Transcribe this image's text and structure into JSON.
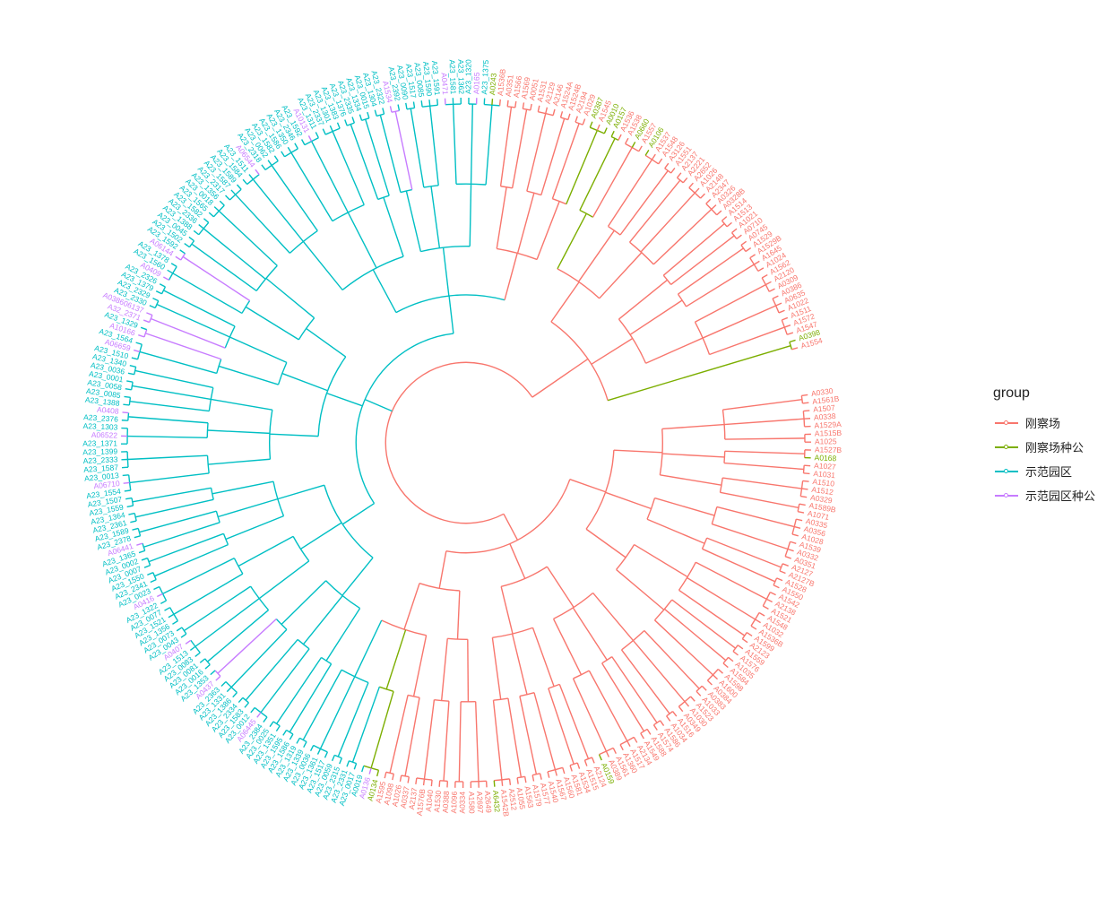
{
  "legend": {
    "title": "group",
    "items": [
      {
        "label": "刚察场",
        "color": "#F8766D"
      },
      {
        "label": "刚察场种公",
        "color": "#7CAE00"
      },
      {
        "label": "示范园区",
        "color": "#00BFC4"
      },
      {
        "label": "示范园区种公",
        "color": "#C77CFF"
      }
    ]
  },
  "tips": [
    {
      "label": "A0330",
      "group": 0
    },
    {
      "label": "A1561B",
      "group": 0
    },
    {
      "label": "A1507",
      "group": 0
    },
    {
      "label": "A0338",
      "group": 0
    },
    {
      "label": "A1529A",
      "group": 0
    },
    {
      "label": "A1515B",
      "group": 0
    },
    {
      "label": "A1025",
      "group": 0
    },
    {
      "label": "A1527B",
      "group": 0
    },
    {
      "label": "A0168",
      "group": 1
    },
    {
      "label": "A1027",
      "group": 0
    },
    {
      "label": "A1031",
      "group": 0
    },
    {
      "label": "A1510",
      "group": 0
    },
    {
      "label": "A1512",
      "group": 0
    },
    {
      "label": "A0329",
      "group": 0
    },
    {
      "label": "A1589B",
      "group": 0
    },
    {
      "label": "A1071",
      "group": 0
    },
    {
      "label": "A0335",
      "group": 0
    },
    {
      "label": "A0356",
      "group": 0
    },
    {
      "label": "A1028",
      "group": 0
    },
    {
      "label": "A1539",
      "group": 0
    },
    {
      "label": "A0332",
      "group": 0
    },
    {
      "label": "A0351",
      "group": 0
    },
    {
      "label": "A2127",
      "group": 0
    },
    {
      "label": "A2127B",
      "group": 0
    },
    {
      "label": "A1528",
      "group": 0
    },
    {
      "label": "A1550",
      "group": 0
    },
    {
      "label": "A1542",
      "group": 0
    },
    {
      "label": "A2138",
      "group": 0
    },
    {
      "label": "A1521",
      "group": 0
    },
    {
      "label": "A1548",
      "group": 0
    },
    {
      "label": "A1032",
      "group": 0
    },
    {
      "label": "A1536B",
      "group": 0
    },
    {
      "label": "A1599",
      "group": 0
    },
    {
      "label": "A2123",
      "group": 0
    },
    {
      "label": "A1559",
      "group": 0
    },
    {
      "label": "A1576",
      "group": 0
    },
    {
      "label": "A1035",
      "group": 0
    },
    {
      "label": "A1584",
      "group": 0
    },
    {
      "label": "A1598",
      "group": 0
    },
    {
      "label": "A1600",
      "group": 0
    },
    {
      "label": "A0384",
      "group": 0
    },
    {
      "label": "A0383",
      "group": 0
    },
    {
      "label": "A1033",
      "group": 0
    },
    {
      "label": "A1523",
      "group": 0
    },
    {
      "label": "A1030",
      "group": 0
    },
    {
      "label": "A0349",
      "group": 0
    },
    {
      "label": "A1516",
      "group": 0
    },
    {
      "label": "A1034",
      "group": 0
    },
    {
      "label": "A1586",
      "group": 0
    },
    {
      "label": "A1574",
      "group": 0
    },
    {
      "label": "A1588",
      "group": 0
    },
    {
      "label": "A1549",
      "group": 0
    },
    {
      "label": "A2134",
      "group": 0
    },
    {
      "label": "A1517",
      "group": 0
    },
    {
      "label": "A1360",
      "group": 0
    },
    {
      "label": "A1561",
      "group": 0
    },
    {
      "label": "A0389",
      "group": 0
    },
    {
      "label": "A0159",
      "group": 1
    },
    {
      "label": "A2124",
      "group": 0
    },
    {
      "label": "A1515",
      "group": 0
    },
    {
      "label": "A1534",
      "group": 0
    },
    {
      "label": "A1581",
      "group": 0
    },
    {
      "label": "A1560",
      "group": 0
    },
    {
      "label": "A1567",
      "group": 0
    },
    {
      "label": "A1540",
      "group": 0
    },
    {
      "label": "A1577",
      "group": 0
    },
    {
      "label": "A1579",
      "group": 0
    },
    {
      "label": "A1563",
      "group": 0
    },
    {
      "label": "A1055",
      "group": 0
    },
    {
      "label": "A2512",
      "group": 0
    },
    {
      "label": "A1542B",
      "group": 0
    },
    {
      "label": "A6432",
      "group": 1
    },
    {
      "label": "A2649",
      "group": 0
    },
    {
      "label": "A2697",
      "group": 0
    },
    {
      "label": "A1580",
      "group": 0
    },
    {
      "label": "A0334",
      "group": 0
    },
    {
      "label": "A1096",
      "group": 0
    },
    {
      "label": "A0388",
      "group": 0
    },
    {
      "label": "A1530",
      "group": 0
    },
    {
      "label": "A1040",
      "group": 0
    },
    {
      "label": "A1576B",
      "group": 0
    },
    {
      "label": "A2137",
      "group": 0
    },
    {
      "label": "A0337",
      "group": 0
    },
    {
      "label": "A1026",
      "group": 0
    },
    {
      "label": "A1098",
      "group": 0
    },
    {
      "label": "A1595",
      "group": 0
    },
    {
      "label": "A0134",
      "group": 1
    },
    {
      "label": "A0136",
      "group": 3
    },
    {
      "label": "A0019",
      "group": 2
    },
    {
      "label": "A23_0017",
      "group": 2
    },
    {
      "label": "A23_2331",
      "group": 2
    },
    {
      "label": "A23_2315",
      "group": 2
    },
    {
      "label": "A23_0059",
      "group": 2
    },
    {
      "label": "A23_1517",
      "group": 2
    },
    {
      "label": "A23_1361",
      "group": 2
    },
    {
      "label": "A23_0036",
      "group": 2
    },
    {
      "label": "A23_1339",
      "group": 2
    },
    {
      "label": "A23_1319",
      "group": 2
    },
    {
      "label": "A23_1586",
      "group": 2
    },
    {
      "label": "A23_1595",
      "group": 2
    },
    {
      "label": "A23_1351",
      "group": 2
    },
    {
      "label": "A23_0025",
      "group": 2
    },
    {
      "label": "A23_2384",
      "group": 2
    },
    {
      "label": "A06445",
      "group": 3
    },
    {
      "label": "A23_0012",
      "group": 2
    },
    {
      "label": "A23_1583",
      "group": 2
    },
    {
      "label": "A23_2334",
      "group": 2
    },
    {
      "label": "A23_1386",
      "group": 2
    },
    {
      "label": "A23_1331",
      "group": 2
    },
    {
      "label": "A23_2363",
      "group": 2
    },
    {
      "label": "A0437",
      "group": 3
    },
    {
      "label": "A23_1353",
      "group": 2
    },
    {
      "label": "A23_0016",
      "group": 2
    },
    {
      "label": "A23_0081",
      "group": 2
    },
    {
      "label": "A23_0083",
      "group": 2
    },
    {
      "label": "A23_1513",
      "group": 2
    },
    {
      "label": "A0407",
      "group": 3
    },
    {
      "label": "A23_0043",
      "group": 2
    },
    {
      "label": "A23_0073",
      "group": 2
    },
    {
      "label": "A23_1356",
      "group": 2
    },
    {
      "label": "A23_1521",
      "group": 2
    },
    {
      "label": "A23_0077",
      "group": 2
    },
    {
      "label": "A23_1322",
      "group": 2
    },
    {
      "label": "A0416",
      "group": 3
    },
    {
      "label": "A23_0023",
      "group": 2
    },
    {
      "label": "A23_2341",
      "group": 2
    },
    {
      "label": "A23_1550",
      "group": 2
    },
    {
      "label": "A23_0007",
      "group": 2
    },
    {
      "label": "A23_0002",
      "group": 2
    },
    {
      "label": "A23_1365",
      "group": 2
    },
    {
      "label": "A06441",
      "group": 3
    },
    {
      "label": "A23_2378",
      "group": 2
    },
    {
      "label": "A23_1589",
      "group": 2
    },
    {
      "label": "A23_2361",
      "group": 2
    },
    {
      "label": "A23_1364",
      "group": 2
    },
    {
      "label": "A23_1559",
      "group": 2
    },
    {
      "label": "A23_1507",
      "group": 2
    },
    {
      "label": "A23_1554",
      "group": 2
    },
    {
      "label": "A06710",
      "group": 3
    },
    {
      "label": "A23_0013",
      "group": 2
    },
    {
      "label": "A23_1587",
      "group": 2
    },
    {
      "label": "A23_2333",
      "group": 2
    },
    {
      "label": "A23_1399",
      "group": 2
    },
    {
      "label": "A23_1371",
      "group": 2
    },
    {
      "label": "A06522",
      "group": 3
    },
    {
      "label": "A23_1303",
      "group": 2
    },
    {
      "label": "A23_2376",
      "group": 2
    },
    {
      "label": "A0408",
      "group": 3
    },
    {
      "label": "A23_1388",
      "group": 2
    },
    {
      "label": "A23_0085",
      "group": 2
    },
    {
      "label": "A23_0058",
      "group": 2
    },
    {
      "label": "A23_0001",
      "group": 2
    },
    {
      "label": "A23_0036",
      "group": 2
    },
    {
      "label": "A23_1340",
      "group": 2
    },
    {
      "label": "A23_1510",
      "group": 2
    },
    {
      "label": "A06659",
      "group": 3
    },
    {
      "label": "A23_1564",
      "group": 2
    },
    {
      "label": "A10166",
      "group": 3
    },
    {
      "label": "A23_1329",
      "group": 2
    },
    {
      "label": "A32_2371",
      "group": 3
    },
    {
      "label": "A038606137",
      "group": 3
    },
    {
      "label": "A23_2330",
      "group": 2
    },
    {
      "label": "A23_2329",
      "group": 2
    },
    {
      "label": "A23_1379",
      "group": 2
    },
    {
      "label": "A23_2326",
      "group": 2
    },
    {
      "label": "A0409",
      "group": 3
    },
    {
      "label": "A23_1560",
      "group": 2
    },
    {
      "label": "A23_1378",
      "group": 2
    },
    {
      "label": "A06144",
      "group": 3
    },
    {
      "label": "A23_1592",
      "group": 2
    },
    {
      "label": "A23_1502",
      "group": 2
    },
    {
      "label": "A23_0045",
      "group": 2
    },
    {
      "label": "A23_1388",
      "group": 2
    },
    {
      "label": "A23_2336",
      "group": 2
    },
    {
      "label": "A23_1582",
      "group": 2
    },
    {
      "label": "A23_1565",
      "group": 2
    },
    {
      "label": "A23_0018",
      "group": 2
    },
    {
      "label": "A23_1356",
      "group": 2
    },
    {
      "label": "A23_2317",
      "group": 2
    },
    {
      "label": "A23_1587",
      "group": 2
    },
    {
      "label": "A23_1589",
      "group": 2
    },
    {
      "label": "A23_1584",
      "group": 2
    },
    {
      "label": "A23_1511",
      "group": 2
    },
    {
      "label": "A06544",
      "group": 3
    },
    {
      "label": "A23_2318",
      "group": 2
    },
    {
      "label": "A23_0062",
      "group": 2
    },
    {
      "label": "A23_1582",
      "group": 2
    },
    {
      "label": "A23_1586",
      "group": 2
    },
    {
      "label": "A23_1350",
      "group": 2
    },
    {
      "label": "A23_2346",
      "group": 2
    },
    {
      "label": "A23_1592",
      "group": 2
    },
    {
      "label": "A10131",
      "group": 3
    },
    {
      "label": "A23_1311",
      "group": 2
    },
    {
      "label": "A23_2337",
      "group": 2
    },
    {
      "label": "A23_1301",
      "group": 2
    },
    {
      "label": "A23_1383",
      "group": 2
    },
    {
      "label": "A23_1376",
      "group": 2
    },
    {
      "label": "A23_2335",
      "group": 2
    },
    {
      "label": "A23_1334",
      "group": 2
    },
    {
      "label": "A23_0015",
      "group": 2
    },
    {
      "label": "A23_1304",
      "group": 2
    },
    {
      "label": "A23_2322",
      "group": 2
    },
    {
      "label": "A1534",
      "group": 3
    },
    {
      "label": "A23_2392",
      "group": 2
    },
    {
      "label": "A23_0090",
      "group": 2
    },
    {
      "label": "A23_1517",
      "group": 2
    },
    {
      "label": "A23_0085",
      "group": 2
    },
    {
      "label": "A23_1590",
      "group": 2
    },
    {
      "label": "A23_1591",
      "group": 2
    },
    {
      "label": "A0471",
      "group": 3
    },
    {
      "label": "A23_1581",
      "group": 2
    },
    {
      "label": "A23_1362",
      "group": 2
    },
    {
      "label": "A23_1320",
      "group": 2
    },
    {
      "label": "A0165",
      "group": 3
    },
    {
      "label": "A23_1375",
      "group": 2
    },
    {
      "label": "A0243",
      "group": 1
    },
    {
      "label": "A1536B",
      "group": 0
    },
    {
      "label": "A0351",
      "group": 0
    },
    {
      "label": "A1566",
      "group": 0
    },
    {
      "label": "A1569",
      "group": 0
    },
    {
      "label": "A0051",
      "group": 0
    },
    {
      "label": "A1531",
      "group": 0
    },
    {
      "label": "A2129",
      "group": 0
    },
    {
      "label": "A2146",
      "group": 0
    },
    {
      "label": "A1524A",
      "group": 0
    },
    {
      "label": "A1524B",
      "group": 0
    },
    {
      "label": "A2194",
      "group": 0
    },
    {
      "label": "A1029",
      "group": 0
    },
    {
      "label": "A0387",
      "group": 1
    },
    {
      "label": "A1545",
      "group": 0
    },
    {
      "label": "A0010",
      "group": 1
    },
    {
      "label": "A0157",
      "group": 1
    },
    {
      "label": "A1536",
      "group": 0
    },
    {
      "label": "A1538",
      "group": 0
    },
    {
      "label": "A0660",
      "group": 1
    },
    {
      "label": "A1557",
      "group": 0
    },
    {
      "label": "A0106",
      "group": 1
    },
    {
      "label": "A1537",
      "group": 0
    },
    {
      "label": "A1548",
      "group": 0
    },
    {
      "label": "A3126",
      "group": 0
    },
    {
      "label": "A1551",
      "group": 0
    },
    {
      "label": "A2137",
      "group": 0
    },
    {
      "label": "A2221",
      "group": 0
    },
    {
      "label": "A2652",
      "group": 0
    },
    {
      "label": "A1026",
      "group": 0
    },
    {
      "label": "A2148",
      "group": 0
    },
    {
      "label": "A2347",
      "group": 0
    },
    {
      "label": "A0326",
      "group": 0
    },
    {
      "label": "A0328B",
      "group": 0
    },
    {
      "label": "A1514",
      "group": 0
    },
    {
      "label": "A1513",
      "group": 0
    },
    {
      "label": "A1021",
      "group": 0
    },
    {
      "label": "A0710",
      "group": 0
    },
    {
      "label": "A0745",
      "group": 0
    },
    {
      "label": "A1529",
      "group": 0
    },
    {
      "label": "A1529B",
      "group": 0
    },
    {
      "label": "A1645",
      "group": 0
    },
    {
      "label": "A1024",
      "group": 0
    },
    {
      "label": "A1562",
      "group": 0
    },
    {
      "label": "A2120",
      "group": 0
    },
    {
      "label": "A0309",
      "group": 0
    },
    {
      "label": "A0386",
      "group": 0
    },
    {
      "label": "A0635",
      "group": 0
    },
    {
      "label": "A1022",
      "group": 0
    },
    {
      "label": "A1511",
      "group": 0
    },
    {
      "label": "A1572",
      "group": 0
    },
    {
      "label": "A1547",
      "group": 0
    },
    {
      "label": "A0398",
      "group": 1
    },
    {
      "label": "A1554",
      "group": 0
    }
  ]
}
